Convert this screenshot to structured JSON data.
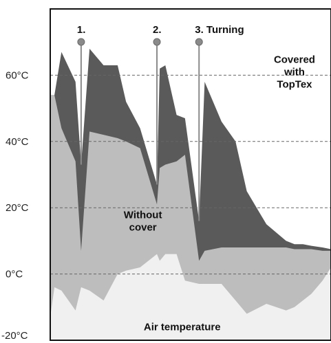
{
  "chart_data": {
    "type": "area",
    "title": "",
    "xlabel": "",
    "ylabel": "",
    "ylim": [
      -20,
      80
    ],
    "y_ticks": [
      -20,
      0,
      20,
      40,
      60
    ],
    "y_tick_labels": [
      "-20°C",
      "0°C",
      "20°C",
      "40°C",
      "60°C"
    ],
    "grid": "horizontal dashed at 0, 20, 40, 60",
    "x": [
      0,
      1.5,
      4,
      9,
      11,
      14,
      19,
      24,
      27,
      32,
      38,
      39,
      41,
      45,
      48,
      53,
      55,
      61,
      66,
      70,
      77,
      84,
      87,
      90,
      93,
      97,
      100
    ],
    "series": [
      {
        "name": "Covered with TopTex",
        "color": "#5a5a5a",
        "values": [
          54,
          54,
          67,
          58,
          33,
          68,
          63,
          63,
          52,
          44,
          27,
          62,
          63,
          48,
          47,
          16,
          58,
          46,
          40,
          25,
          15,
          10,
          9,
          9,
          8.5,
          8,
          7.5
        ]
      },
      {
        "name": "Without cover",
        "color": "#bdbdbd",
        "values": [
          54,
          54,
          44,
          34,
          7,
          43,
          42,
          41,
          40,
          38,
          21,
          32,
          33,
          34,
          36,
          4,
          7,
          8,
          8,
          8,
          8,
          8,
          7.5,
          7.5,
          7.5,
          7,
          7
        ]
      },
      {
        "name": "Air temperature",
        "color": "#f0f0f0",
        "values": [
          -13,
          -4,
          -5,
          -11,
          -4,
          -5,
          -8,
          0,
          1,
          2,
          6,
          4,
          6,
          6,
          -2,
          -3,
          -3,
          -3,
          -8,
          -12,
          -9,
          -11,
          -10,
          -8,
          -6,
          -2,
          2
        ]
      }
    ],
    "turning_markers": [
      {
        "label": "1.",
        "x": 11,
        "y_low": 33
      },
      {
        "label": "2.",
        "x": 38,
        "y_low": 27
      },
      {
        "label": "3. Turning",
        "x": 53,
        "y_low": 16
      }
    ],
    "annotations": [
      {
        "text": [
          "Covered",
          "with",
          "TopTex"
        ],
        "x": 87,
        "y": 61
      },
      {
        "text": [
          "Without",
          "cover"
        ],
        "x": 33,
        "y": 16
      },
      {
        "text": [
          "Air temperature"
        ],
        "x": 47,
        "y": -16
      }
    ]
  }
}
